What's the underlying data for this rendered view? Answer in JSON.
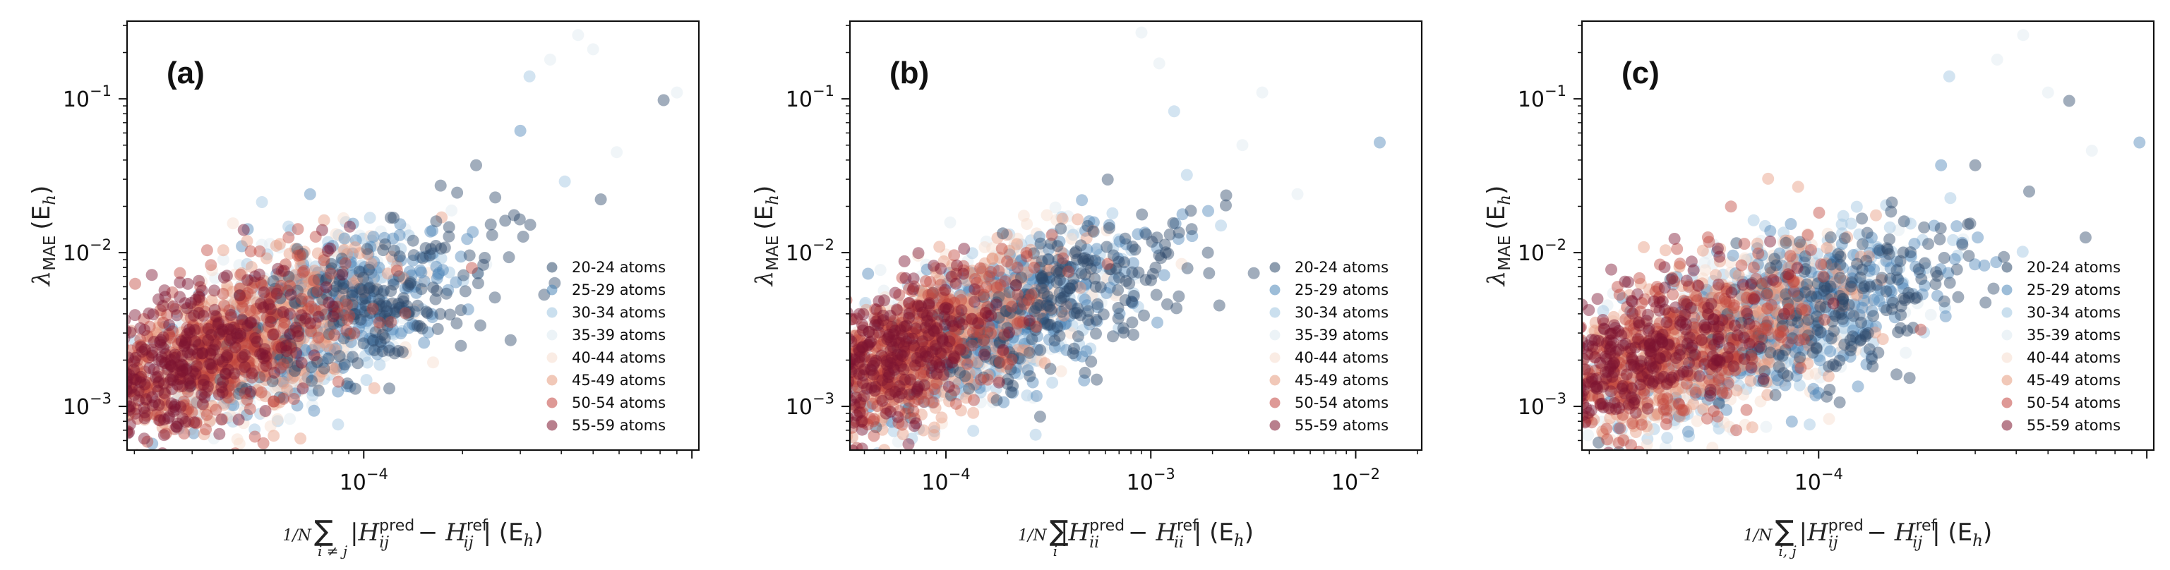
{
  "chart_data": [
    {
      "type": "scatter",
      "panel_label": "(a)",
      "title": "",
      "xscale": "log",
      "yscale": "log",
      "xlim": [
        1.9e-05,
        0.00105
      ],
      "ylim": [
        0.00052,
        0.32
      ],
      "xticks": [
        0.0001
      ],
      "xtick_labels": [
        {
          "base": "10",
          "exp": "−4"
        }
      ],
      "yticks": [
        0.001,
        0.01,
        0.1
      ],
      "ytick_labels": [
        {
          "base": "10",
          "exp": "−3"
        },
        {
          "base": "10",
          "exp": "−2"
        },
        {
          "base": "10",
          "exp": "−1"
        }
      ],
      "ylabel": {
        "symbol": "λ",
        "sub": "MAE",
        "unit": "(E",
        "unit_sub": "h",
        "unit_close": ")"
      },
      "xlabel": {
        "prefix": "1/N",
        "sum_sub": "i ≠ j",
        "body": "|H",
        "pred": "pred",
        "ref": "ref",
        "idx": "ij",
        "unit": "(E",
        "unit_sub": "h",
        "unit_close": ")"
      },
      "legend_position": "lower-right",
      "cloud": {
        "x_center": 4.8e-05,
        "y_center": 0.0028,
        "x_spread": 0.55,
        "y_spread": 0.62,
        "corr": 0.62
      },
      "outliers": [
        {
          "x": 0.00045,
          "y": 0.26,
          "group": 3
        },
        {
          "x": 0.0009,
          "y": 0.11,
          "group": 3
        },
        {
          "x": 0.00082,
          "y": 0.098,
          "group": 0
        },
        {
          "x": 0.00059,
          "y": 0.045,
          "group": 3
        },
        {
          "x": 0.00037,
          "y": 0.18,
          "group": 3
        },
        {
          "x": 0.00041,
          "y": 0.029,
          "group": 2
        },
        {
          "x": 0.00032,
          "y": 0.14,
          "group": 2
        },
        {
          "x": 0.0005,
          "y": 0.21,
          "group": 3
        },
        {
          "x": 0.00022,
          "y": 0.037,
          "group": 0
        },
        {
          "x": 0.0003,
          "y": 0.062,
          "group": 1
        }
      ]
    },
    {
      "type": "scatter",
      "panel_label": "(b)",
      "title": "",
      "xscale": "log",
      "yscale": "log",
      "xlim": [
        3.4e-05,
        0.021
      ],
      "ylim": [
        0.00052,
        0.32
      ],
      "xticks": [
        0.0001,
        0.001,
        0.01
      ],
      "xtick_labels": [
        {
          "base": "10",
          "exp": "−4"
        },
        {
          "base": "10",
          "exp": "−3"
        },
        {
          "base": "10",
          "exp": "−2"
        }
      ],
      "yticks": [
        0.001,
        0.01,
        0.1
      ],
      "ytick_labels": [
        {
          "base": "10",
          "exp": "−3"
        },
        {
          "base": "10",
          "exp": "−2"
        },
        {
          "base": "10",
          "exp": "−1"
        }
      ],
      "ylabel": {
        "symbol": "λ",
        "sub": "MAE",
        "unit": "(E",
        "unit_sub": "h",
        "unit_close": ")"
      },
      "xlabel": {
        "prefix": "1/N",
        "sum_sub": "i",
        "body": "|H",
        "pred": "pred",
        "ref": "ref",
        "idx": "ii",
        "unit": "(E",
        "unit_sub": "h",
        "unit_close": ")"
      },
      "legend_position": "lower-right",
      "cloud": {
        "x_center": 0.000105,
        "y_center": 0.0028,
        "x_spread": 0.82,
        "y_spread": 0.62,
        "corr": 0.66
      },
      "outliers": [
        {
          "x": 0.0131,
          "y": 0.052,
          "group": 1
        },
        {
          "x": 0.0052,
          "y": 0.024,
          "group": 3
        },
        {
          "x": 0.0022,
          "y": 0.015,
          "group": 2
        },
        {
          "x": 0.0015,
          "y": 0.032,
          "group": 2
        },
        {
          "x": 0.0019,
          "y": 0.01,
          "group": 0
        },
        {
          "x": 0.0028,
          "y": 0.05,
          "group": 3
        },
        {
          "x": 0.0009,
          "y": 0.27,
          "group": 3
        },
        {
          "x": 0.0011,
          "y": 0.17,
          "group": 3
        },
        {
          "x": 0.0013,
          "y": 0.083,
          "group": 2
        },
        {
          "x": 0.0035,
          "y": 0.11,
          "group": 3
        }
      ]
    },
    {
      "type": "scatter",
      "panel_label": "(c)",
      "title": "",
      "xscale": "log",
      "yscale": "log",
      "xlim": [
        1.9e-05,
        0.00105
      ],
      "ylim": [
        0.00052,
        0.32
      ],
      "xticks": [
        0.0001
      ],
      "xtick_labels": [
        {
          "base": "10",
          "exp": "−4"
        }
      ],
      "yticks": [
        0.001,
        0.01,
        0.1
      ],
      "ytick_labels": [
        {
          "base": "10",
          "exp": "−3"
        },
        {
          "base": "10",
          "exp": "−2"
        },
        {
          "base": "10",
          "exp": "−1"
        }
      ],
      "ylabel": {
        "symbol": "λ",
        "sub": "MAE",
        "unit": "(E",
        "unit_sub": "h",
        "unit_close": ")"
      },
      "xlabel": {
        "prefix": "1/N",
        "sum_sub": "i, j",
        "body": "|H",
        "pred": "pred",
        "ref": "ref",
        "idx": "ij",
        "unit": "(E",
        "unit_sub": "h",
        "unit_close": ")"
      },
      "legend_position": "lower-right",
      "cloud": {
        "x_center": 5e-05,
        "y_center": 0.0028,
        "x_spread": 0.6,
        "y_spread": 0.62,
        "corr": 0.63
      },
      "outliers": [
        {
          "x": 0.00095,
          "y": 0.052,
          "group": 1
        },
        {
          "x": 0.00068,
          "y": 0.046,
          "group": 3
        },
        {
          "x": 0.00042,
          "y": 0.26,
          "group": 3
        },
        {
          "x": 0.00058,
          "y": 0.097,
          "group": 0
        },
        {
          "x": 0.0005,
          "y": 0.11,
          "group": 3
        },
        {
          "x": 0.00035,
          "y": 0.18,
          "group": 3
        },
        {
          "x": 0.0003,
          "y": 0.037,
          "group": 0
        },
        {
          "x": 0.00025,
          "y": 0.14,
          "group": 2
        }
      ]
    }
  ],
  "legend": {
    "entries": [
      {
        "label": "20-24 atoms",
        "color": "#2e4a6b"
      },
      {
        "label": "25-29 atoms",
        "color": "#4d86b8"
      },
      {
        "label": "30-34 atoms",
        "color": "#9ec4e0"
      },
      {
        "label": "35-39 atoms",
        "color": "#dde9f0"
      },
      {
        "label": "40-44 atoms",
        "color": "#f6dccd"
      },
      {
        "label": "45-49 atoms",
        "color": "#e69a7e"
      },
      {
        "label": "50-54 atoms",
        "color": "#c2463f"
      },
      {
        "label": "55-59 atoms",
        "color": "#7d1530"
      }
    ]
  },
  "style": {
    "point_alpha": 0.45,
    "n_points_per_panel": 2600
  }
}
